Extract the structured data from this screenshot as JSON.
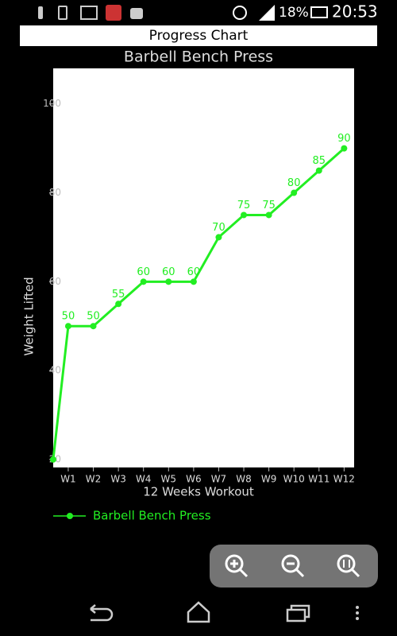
{
  "status_bar": {
    "battery": "18%",
    "time": "20:53"
  },
  "app_bar": {
    "title": "Progress Chart"
  },
  "chart_data": {
    "type": "line",
    "title": "Barbell Bench Press",
    "x_label": "12 Weeks Workout",
    "y_label": "Weight Lifted",
    "x": [
      0.4,
      1,
      2,
      3,
      4,
      5,
      6,
      7,
      8,
      9,
      10,
      11,
      12
    ],
    "xlim": [
      0.4,
      12.4
    ],
    "xticks": [
      {
        "value": 1,
        "label": "W1"
      },
      {
        "value": 2,
        "label": "W2"
      },
      {
        "value": 3,
        "label": "W3"
      },
      {
        "value": 4,
        "label": "W4"
      },
      {
        "value": 5,
        "label": "W5"
      },
      {
        "value": 6,
        "label": "W6"
      },
      {
        "value": 7,
        "label": "W7"
      },
      {
        "value": 8,
        "label": "W8"
      },
      {
        "value": 9,
        "label": "W9"
      },
      {
        "value": 10,
        "label": "W10"
      },
      {
        "value": 11,
        "label": "W11"
      },
      {
        "value": 12,
        "label": "W12"
      }
    ],
    "ylim": [
      18.2,
      108
    ],
    "yticks": [
      20,
      40,
      60,
      80,
      100
    ],
    "series": [
      {
        "name": "Barbell Bench Press",
        "color": "#22ee22",
        "values": [
          20,
          50,
          50,
          55,
          60,
          60,
          60,
          70,
          75,
          75,
          80,
          85,
          90
        ]
      }
    ],
    "legend": "bottom-left"
  }
}
